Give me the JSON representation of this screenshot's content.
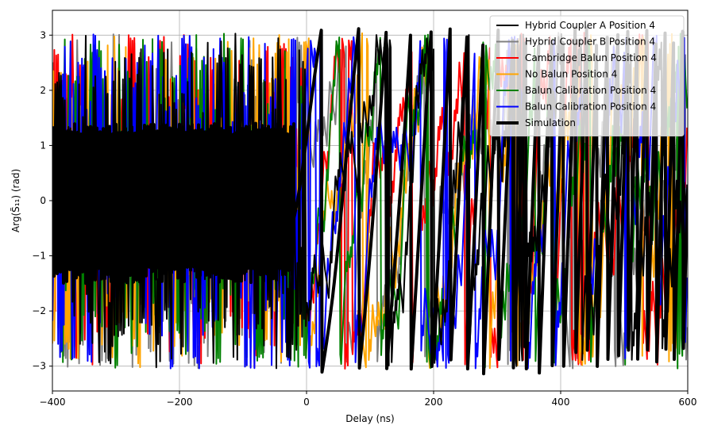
{
  "chart_data": {
    "type": "line",
    "xlabel": "Delay (ns)",
    "ylabel": "Arg(S̃₁₁) (rad)",
    "xlim": [
      -400,
      600
    ],
    "ylim": [
      -3.45,
      3.45
    ],
    "xticks": [
      -400,
      -200,
      0,
      200,
      400,
      600
    ],
    "xtick_labels": [
      "−400",
      "−200",
      "0",
      "200",
      "400",
      "600"
    ],
    "yticks": [
      -3,
      -2,
      -1,
      0,
      1,
      2,
      3
    ],
    "ytick_labels": [
      "−3",
      "−2",
      "−1",
      "0",
      "1",
      "2",
      "3"
    ],
    "grid": true,
    "legend_position": "top-right",
    "series": [
      {
        "name": "Hybrid Coupler A Position 4",
        "color": "#000000",
        "width": 2,
        "style": "dense-wrap",
        "seed": 11
      },
      {
        "name": "Hybrid Coupler B Position 4",
        "color": "#808080",
        "width": 2,
        "style": "dense-wrap",
        "seed": 23
      },
      {
        "name": "Cambridge Balun Position 4",
        "color": "#ff0000",
        "width": 2,
        "style": "dense-wrap",
        "seed": 37
      },
      {
        "name": "No Balun Position 4",
        "color": "#ffa500",
        "width": 2,
        "style": "dense-wrap",
        "seed": 41
      },
      {
        "name": "Balun Calibration Position 4",
        "color": "#008000",
        "width": 2,
        "style": "dense-wrap",
        "seed": 53
      },
      {
        "name": "Balun Calibration Position 4",
        "color": "#0000ff",
        "width": 2,
        "style": "dense-wrap",
        "seed": 67
      },
      {
        "name": "Simulation",
        "color": "#000000",
        "width": 4,
        "style": "simulation",
        "seed": 79
      }
    ]
  }
}
